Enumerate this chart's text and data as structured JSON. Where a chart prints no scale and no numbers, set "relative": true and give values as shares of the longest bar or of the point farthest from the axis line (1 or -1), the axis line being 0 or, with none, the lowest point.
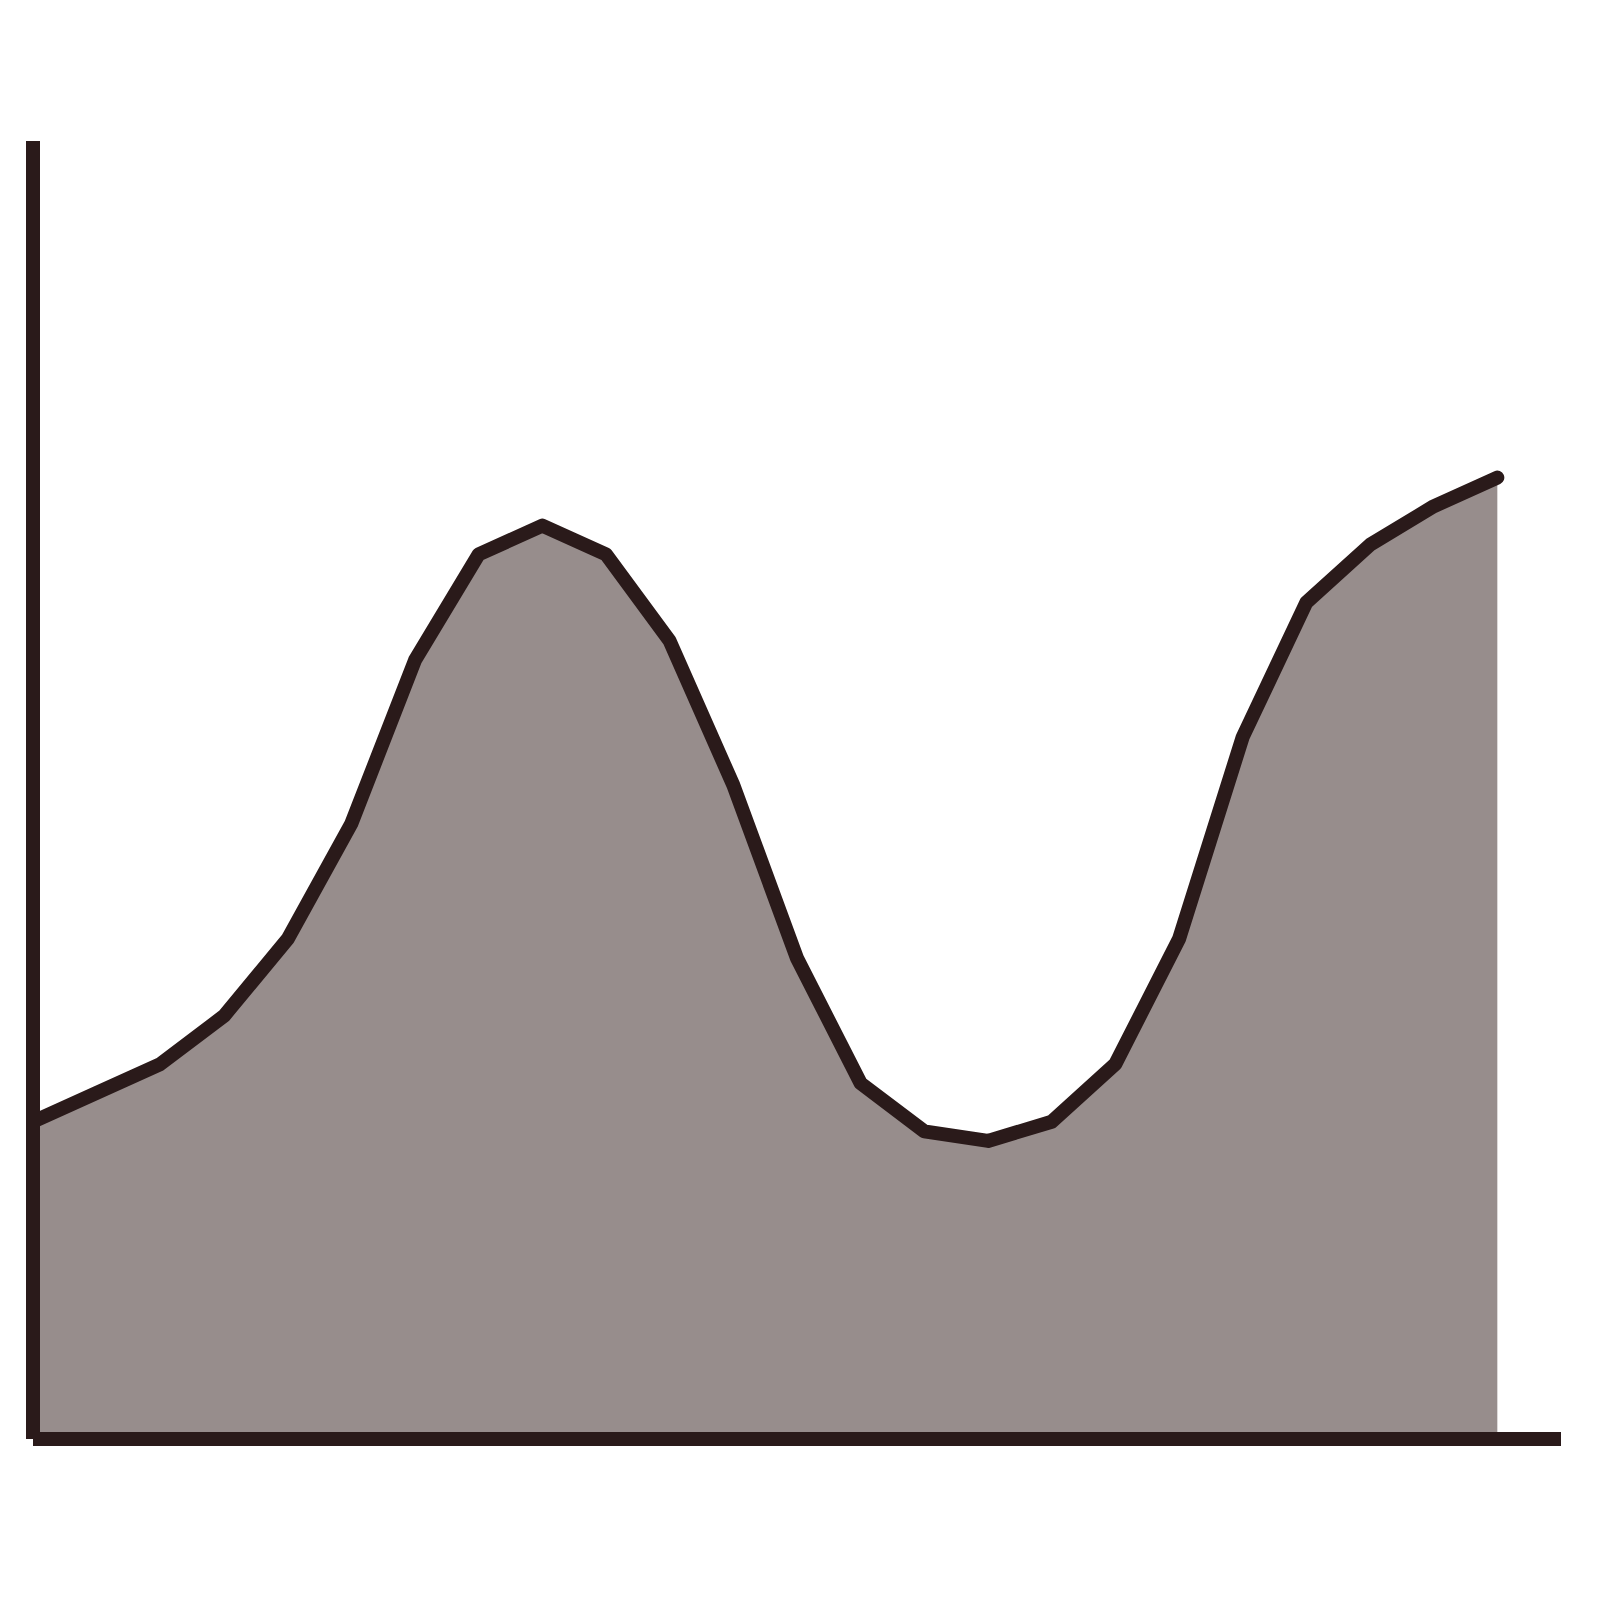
{
  "chart_data": {
    "type": "area",
    "relative": true,
    "tick_labels": false,
    "categories": [
      null,
      null,
      null,
      null,
      null,
      null,
      null,
      null,
      null,
      null,
      null,
      null,
      null,
      null,
      null,
      null,
      null,
      null,
      null,
      null,
      null,
      null,
      null,
      null
    ],
    "series": [
      {
        "color": "#978d8c",
        "values": [
          0.33,
          0.36,
          0.39,
          0.44,
          0.52,
          0.64,
          0.81,
          0.92,
          0.95,
          0.92,
          0.83,
          0.68,
          0.5,
          0.37,
          0.32,
          0.31,
          0.33,
          0.39,
          0.52,
          0.73,
          0.87,
          0.93,
          0.97,
          1.0
        ]
      }
    ]
  }
}
